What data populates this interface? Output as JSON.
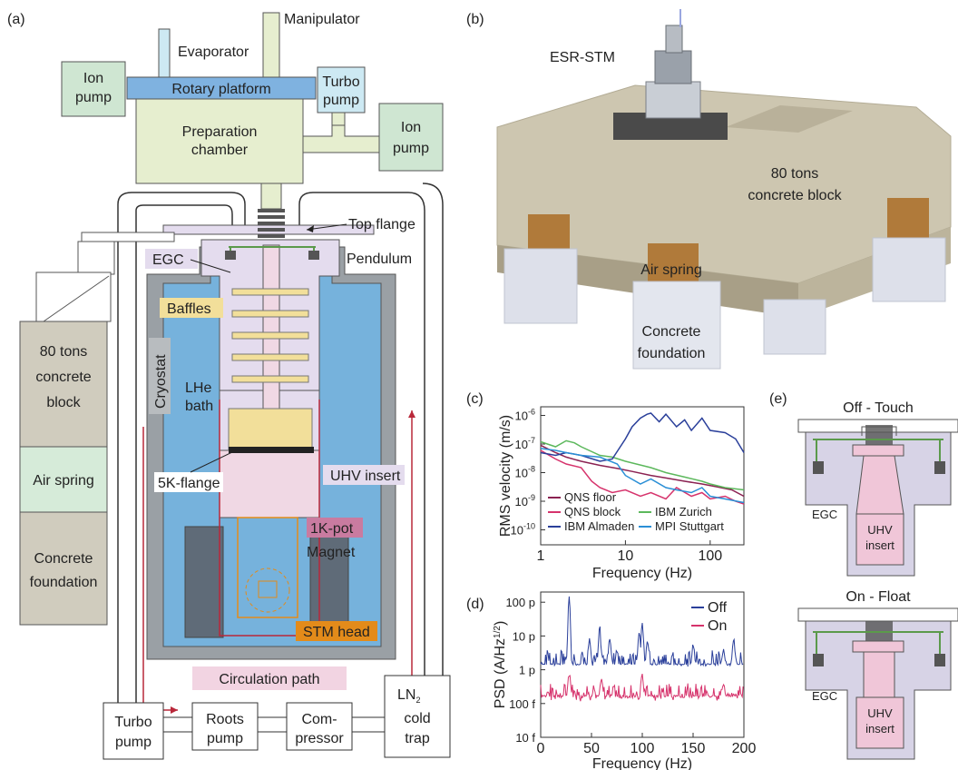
{
  "panels": {
    "a": {
      "label": "(a)",
      "components": {
        "manipulator": "Manipulator",
        "evaporator": "Evaporator",
        "ion_pump_left": [
          "Ion",
          "pump"
        ],
        "ion_pump_right": [
          "Ion",
          "pump"
        ],
        "rotary_platform": "Rotary platform",
        "turbo_pump_top": [
          "Turbo",
          "pump"
        ],
        "preparation_chamber": [
          "Preparation",
          "chamber"
        ],
        "top_flange": "Top flange",
        "pendulum": "Pendulum",
        "egc": "EGC",
        "baffles": "Baffles",
        "cryostat": "Cryostat",
        "lhe_bath": [
          "LHe",
          "bath"
        ],
        "uhv_insert": "UHV insert",
        "flange_5k": "5K-flange",
        "pot_1k": "1K-pot",
        "magnet": "Magnet",
        "stm_head": "STM head",
        "circulation_path": "Circulation path",
        "concrete_block": [
          "80 tons",
          "concrete",
          "block"
        ],
        "air_spring": "Air spring",
        "concrete_foundation": [
          "Concrete",
          "foundation"
        ],
        "turbo_pump_bottom": [
          "Turbo",
          "pump"
        ],
        "roots_pump": [
          "Roots",
          "pump"
        ],
        "compressor": [
          "Com-",
          "pressor"
        ],
        "ln2_trap": [
          "LN",
          "2",
          "cold",
          "trap"
        ]
      }
    },
    "b": {
      "label": "(b)",
      "esr_stm": "ESR-STM",
      "concrete_block": [
        "80 tons",
        "concrete block"
      ],
      "air_spring": "Air spring",
      "concrete_foundation": [
        "Concrete",
        "foundation"
      ]
    },
    "e": {
      "label": "(e)",
      "off_title": "Off - Touch",
      "on_title": "On - Float",
      "egc": "EGC",
      "uhv_insert": [
        "UHV",
        "insert"
      ]
    }
  },
  "chart_data": [
    {
      "panel_label": "(c)",
      "type": "line",
      "xlabel": "Frequency (Hz)",
      "ylabel": "RMS velocity (m/s)",
      "xscale": "log",
      "yscale": "log",
      "xlim": [
        1,
        250
      ],
      "ylim": [
        3e-11,
        2e-06
      ],
      "x_ticks": [
        "1",
        "10",
        "100"
      ],
      "y_ticks": [
        "10-10",
        "10-9",
        "10-8",
        "10-7",
        "10-6"
      ],
      "legend_position": "bottom (inside)",
      "series": [
        {
          "name": "QNS floor",
          "color": "#8b2252",
          "x": [
            1,
            1.5,
            2,
            3,
            5,
            8,
            12,
            20,
            30,
            50,
            80,
            120,
            180,
            250
          ],
          "y": [
            9e-08,
            5e-08,
            3.5e-08,
            2.5e-08,
            1.8e-08,
            1.4e-08,
            1.1e-08,
            8e-09,
            6.5e-09,
            5e-09,
            4e-09,
            3.2e-09,
            2.5e-09,
            1.5e-09
          ]
        },
        {
          "name": "QNS block",
          "color": "#d6336c",
          "x": [
            1,
            1.5,
            2,
            3,
            4,
            5,
            7,
            10,
            15,
            20,
            30,
            40,
            60,
            80,
            100,
            150,
            200,
            250
          ],
          "y": [
            6e-08,
            3e-08,
            2e-08,
            1.5e-08,
            5e-09,
            3e-09,
            2e-09,
            2.5e-09,
            1.5e-09,
            2e-09,
            1.2e-09,
            3e-09,
            1.5e-09,
            2e-09,
            1.2e-09,
            1.5e-09,
            1e-09,
            8e-10
          ]
        },
        {
          "name": "IBM Zurich",
          "color": "#5cb85c",
          "x": [
            1,
            1.5,
            2,
            2.5,
            3,
            5,
            7,
            10,
            20,
            30,
            50,
            80,
            100,
            150,
            250
          ],
          "y": [
            1.2e-07,
            8e-08,
            1.3e-07,
            1.1e-07,
            8e-08,
            4e-08,
            3.5e-08,
            2.5e-08,
            1.5e-08,
            1e-08,
            7e-09,
            5e-09,
            4e-09,
            3e-09,
            2.5e-09
          ]
        },
        {
          "name": "IBM Almaden",
          "color": "#2a3f9a",
          "x": [
            1,
            1.5,
            2,
            3,
            5,
            7,
            10,
            12,
            15,
            18,
            20,
            25,
            30,
            40,
            50,
            60,
            80,
            100,
            150,
            200,
            250
          ],
          "y": [
            5e-08,
            4e-08,
            5e-08,
            4e-08,
            2.5e-08,
            3e-08,
            1.5e-07,
            4e-07,
            8e-07,
            1.1e-06,
            1.2e-06,
            6e-07,
            1.1e-06,
            4e-07,
            7e-07,
            3e-07,
            8e-07,
            3e-07,
            2.5e-07,
            1.5e-07,
            5e-08
          ]
        },
        {
          "name": "MPI Stuttgart",
          "color": "#2a8fd6",
          "x": [
            1,
            1.5,
            2,
            3,
            5,
            8,
            10,
            15,
            20,
            30,
            40,
            60,
            80,
            100,
            150,
            250
          ],
          "y": [
            7e-08,
            6e-08,
            5e-08,
            4e-08,
            3.5e-08,
            2e-08,
            8e-09,
            4e-09,
            6e-09,
            3e-09,
            2.5e-09,
            2e-09,
            3e-09,
            1.5e-09,
            1.2e-09,
            9e-10
          ]
        }
      ]
    },
    {
      "panel_label": "(d)",
      "type": "line",
      "xlabel": "Frequency (Hz)",
      "ylabel": "PSD (A/Hz1/2)",
      "yscale": "log",
      "xlim": [
        0,
        200
      ],
      "ylim": [
        1e-14,
        2e-10
      ],
      "x_ticks": [
        "0",
        "50",
        "100",
        "150",
        "200"
      ],
      "y_ticks": [
        "10 f",
        "100 f",
        "1 p",
        "10 p",
        "100 p"
      ],
      "legend_position": "top-right",
      "peaks_note": [
        {
          "series": "Off",
          "x": [
            28,
            48,
            58,
            68,
            97,
            100,
            105,
            150,
            180,
            190
          ],
          "y": [
            1.5e-10,
            1e-11,
            2e-11,
            8e-12,
            1.5e-11,
            2.5e-11,
            8e-12,
            6e-12,
            4e-12,
            1e-11
          ]
        }
      ],
      "series": [
        {
          "name": "Off",
          "color": "#2a3f9a",
          "baseline": 1.2e-12,
          "noise_decades": 0.5,
          "peaks": [
            [
              28,
              1.5e-10
            ],
            [
              48,
              1e-11
            ],
            [
              58,
              2e-11
            ],
            [
              68,
              8e-12
            ],
            [
              97,
              1.5e-11
            ],
            [
              100,
              2.5e-11
            ],
            [
              105,
              8e-12
            ],
            [
              150,
              6e-12
            ],
            [
              180,
              4e-12
            ],
            [
              190,
              1e-11
            ]
          ]
        },
        {
          "name": "On",
          "color": "#d6336c",
          "baseline": 1.4e-13,
          "noise_decades": 0.45,
          "peaks": [
            [
              28,
              8e-13
            ],
            [
              60,
              6e-13
            ],
            [
              100,
              7e-13
            ]
          ]
        }
      ]
    }
  ],
  "colors": {
    "chamber": "#e6eecf",
    "ion_pump": "#cfe6d2",
    "rotary_platform": "#7fb2e0",
    "turbo_top": "#cde9f3",
    "lhe": "#76b2dc",
    "cryostat": "#9aa0a5",
    "magnet": "#5f6b78",
    "insert": "#f0d8e4",
    "egc": "#e4dcee",
    "baffle": "#f2df9a",
    "stm_orange": "#e38b1a",
    "circulation": "#b9283a",
    "stack_block": "#d0ccbe",
    "stack_spring": "#d6ebd9",
    "pendulum_green": "#5b9a4b"
  }
}
